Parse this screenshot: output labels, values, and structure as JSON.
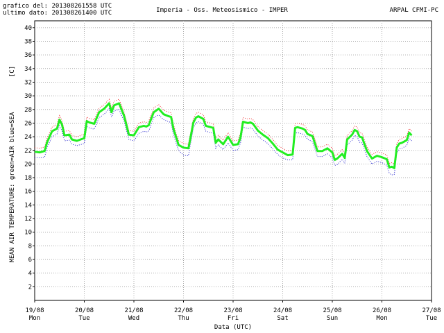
{
  "header": {
    "line1": "grafico del: 201308261558 UTC",
    "line2": "ultimo dato: 201308261400 UTC",
    "title": "Imperia - Oss. Meteosismico - IMPER",
    "agency": "ARPAL CFMI-PC"
  },
  "colors": {
    "air_mean": "#22ee22",
    "air_range": "#ee3333",
    "sea": "#2222cc",
    "grid": "#aaaaaa"
  },
  "chart_data": {
    "type": "line",
    "title": "Imperia - Oss. Meteosismico - IMPER",
    "unit_label": "[C]",
    "ylabel": "MEAN AIR TEMPERATURE: green=AIR  blue=SEA",
    "xlabel": "Data (UTC)",
    "ylim": [
      0,
      41
    ],
    "y_ticks": [
      2,
      4,
      6,
      8,
      10,
      12,
      14,
      16,
      18,
      20,
      22,
      24,
      26,
      28,
      30,
      32,
      34,
      36,
      38,
      40
    ],
    "xlim": [
      0,
      8
    ],
    "x_unit": "days since 19/08 00 UTC",
    "x_ticks": [
      {
        "date": "19/08",
        "day": "Mon"
      },
      {
        "date": "20/08",
        "day": "Tue"
      },
      {
        "date": "21/08",
        "day": "Wed"
      },
      {
        "date": "22/08",
        "day": "Thu"
      },
      {
        "date": "23/08",
        "day": "Fri"
      },
      {
        "date": "24/08",
        "day": "Sat"
      },
      {
        "date": "25/08",
        "day": "Sun"
      },
      {
        "date": "26/08",
        "day": "Mon"
      },
      {
        "date": "27/08",
        "day": "Tue"
      }
    ],
    "grid": true,
    "series": [
      {
        "name": "AIR",
        "color": "#22ee22",
        "x": [
          0.0,
          0.1,
          0.2,
          0.25,
          0.35,
          0.45,
          0.5,
          0.55,
          0.6,
          0.7,
          0.75,
          0.85,
          1.0,
          1.05,
          1.1,
          1.2,
          1.3,
          1.4,
          1.5,
          1.55,
          1.6,
          1.7,
          1.8,
          1.9,
          2.0,
          2.1,
          2.2,
          2.25,
          2.3,
          2.4,
          2.5,
          2.6,
          2.7,
          2.75,
          2.8,
          2.9,
          3.0,
          3.1,
          3.2,
          3.25,
          3.3,
          3.4,
          3.45,
          3.5,
          3.6,
          3.65,
          3.7,
          3.8,
          3.9,
          4.0,
          4.1,
          4.15,
          4.2,
          4.3,
          4.35,
          4.4,
          4.5,
          4.6,
          4.7,
          4.8,
          4.9,
          5.0,
          5.1,
          5.2,
          5.25,
          5.3,
          5.4,
          5.45,
          5.5,
          5.6,
          5.7,
          5.8,
          5.9,
          6.0,
          6.05,
          6.1,
          6.2,
          6.25,
          6.3,
          6.4,
          6.45,
          6.5,
          6.55,
          6.6,
          6.7,
          6.8,
          6.9,
          7.0,
          7.1,
          7.15,
          7.2,
          7.25,
          7.3,
          7.35,
          7.4,
          7.5,
          7.55,
          7.6
        ],
        "values": [
          21.8,
          21.7,
          21.9,
          23.2,
          24.8,
          25.2,
          26.5,
          25.8,
          24.2,
          24.3,
          23.6,
          23.4,
          23.8,
          26.3,
          26.1,
          25.9,
          27.6,
          28.1,
          28.9,
          27.6,
          28.6,
          28.9,
          27.1,
          24.3,
          24.2,
          25.4,
          25.6,
          25.5,
          25.7,
          27.6,
          28.1,
          27.3,
          27.0,
          26.9,
          25.1,
          22.8,
          22.4,
          22.3,
          26.1,
          26.8,
          27.0,
          26.6,
          25.6,
          25.5,
          25.3,
          23.1,
          23.6,
          22.9,
          24.0,
          22.8,
          22.9,
          23.9,
          26.2,
          26.0,
          26.1,
          25.9,
          24.9,
          24.3,
          23.8,
          23.0,
          22.1,
          21.7,
          21.3,
          21.4,
          25.3,
          25.4,
          25.2,
          25.0,
          24.4,
          24.1,
          21.9,
          21.9,
          22.3,
          21.7,
          20.6,
          20.8,
          21.5,
          20.9,
          23.6,
          24.3,
          25.0,
          24.8,
          24.0,
          23.9,
          21.9,
          20.8,
          21.2,
          21.0,
          20.7,
          19.5,
          19.6,
          19.4,
          22.4,
          23.0,
          23.1,
          23.5,
          24.6,
          24.2
        ]
      },
      {
        "name": "SEA",
        "color": "#2222cc",
        "x": [
          0.0,
          0.1,
          0.2,
          0.25,
          0.35,
          0.45,
          0.5,
          0.55,
          0.6,
          0.7,
          0.75,
          0.85,
          1.0,
          1.05,
          1.1,
          1.2,
          1.3,
          1.4,
          1.5,
          1.55,
          1.6,
          1.7,
          1.8,
          1.9,
          2.0,
          2.1,
          2.2,
          2.25,
          2.3,
          2.4,
          2.5,
          2.6,
          2.7,
          2.75,
          2.8,
          2.9,
          3.0,
          3.1,
          3.2,
          3.25,
          3.3,
          3.4,
          3.45,
          3.5,
          3.6,
          3.65,
          3.7,
          3.8,
          3.9,
          4.0,
          4.1,
          4.15,
          4.2,
          4.3,
          4.35,
          4.4,
          4.5,
          4.6,
          4.7,
          4.8,
          4.9,
          5.0,
          5.1,
          5.2,
          5.25,
          5.3,
          5.4,
          5.45,
          5.5,
          5.6,
          5.7,
          5.8,
          5.9,
          6.0,
          6.05,
          6.1,
          6.2,
          6.25,
          6.3,
          6.4,
          6.45,
          6.5,
          6.55,
          6.6,
          6.7,
          6.8,
          6.9,
          7.0,
          7.1,
          7.15,
          7.2,
          7.25,
          7.3,
          7.35,
          7.4,
          7.5,
          7.55,
          7.6
        ],
        "values": [
          21.0,
          20.9,
          21.0,
          22.4,
          24.0,
          24.4,
          25.6,
          24.9,
          23.4,
          23.5,
          22.9,
          22.7,
          23.0,
          25.5,
          25.3,
          25.1,
          26.8,
          27.3,
          28.1,
          26.9,
          27.8,
          28.0,
          26.3,
          23.6,
          23.4,
          24.5,
          24.8,
          24.7,
          24.8,
          26.8,
          27.2,
          26.5,
          26.2,
          26.1,
          24.2,
          22.0,
          21.3,
          21.2,
          25.3,
          26.0,
          26.2,
          25.8,
          24.8,
          24.7,
          24.5,
          22.3,
          22.8,
          22.1,
          23.1,
          22.0,
          22.1,
          23.1,
          25.4,
          25.2,
          25.3,
          25.1,
          24.1,
          23.5,
          23.0,
          22.2,
          21.4,
          20.9,
          20.6,
          20.6,
          24.5,
          24.6,
          24.4,
          24.2,
          23.6,
          23.3,
          21.1,
          21.1,
          21.5,
          20.9,
          19.8,
          19.9,
          20.7,
          20.1,
          22.8,
          23.5,
          24.2,
          24.0,
          23.2,
          23.1,
          21.1,
          20.0,
          20.4,
          20.2,
          19.8,
          18.6,
          18.4,
          18.5,
          21.6,
          22.2,
          22.3,
          22.7,
          23.8,
          23.4
        ]
      }
    ]
  }
}
